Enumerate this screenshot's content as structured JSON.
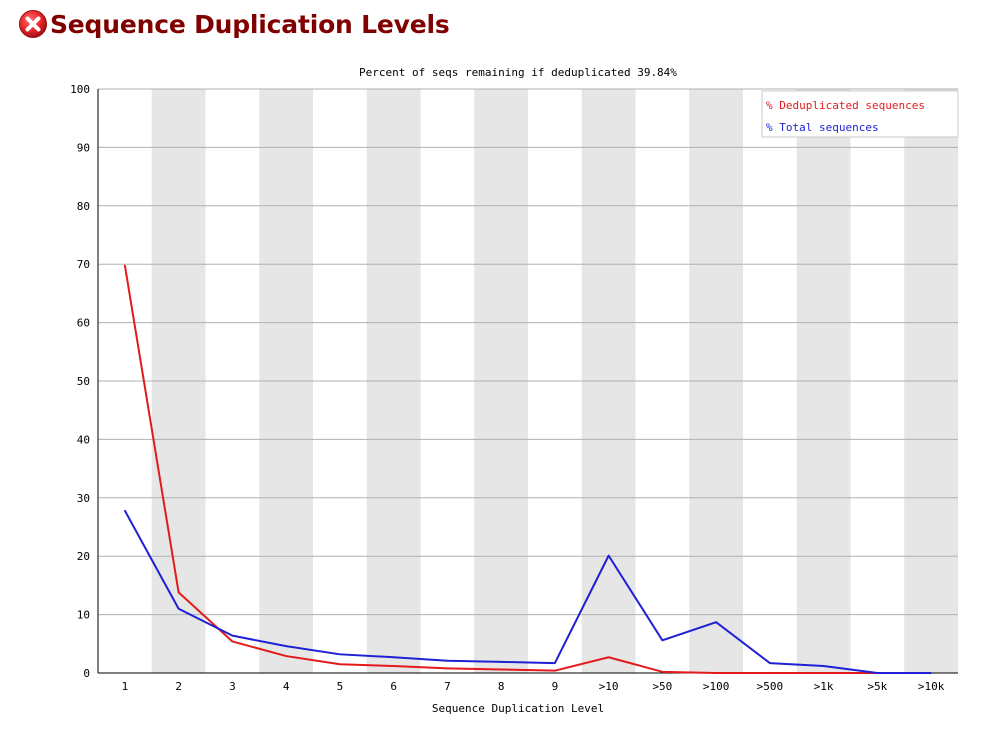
{
  "page": {
    "title": "Sequence Duplication Levels",
    "status": "fail",
    "status_icon": "error-x-icon",
    "status_color": "#e8272b"
  },
  "chart_data": {
    "type": "line",
    "title": "Percent of seqs remaining if deduplicated 39.84%",
    "xlabel": "Sequence Duplication Level",
    "ylabel": "",
    "ylim": [
      0,
      100
    ],
    "yticks": [
      0,
      10,
      20,
      30,
      40,
      50,
      60,
      70,
      80,
      90,
      100
    ],
    "categories": [
      "1",
      "2",
      "3",
      "4",
      "5",
      "6",
      "7",
      "8",
      "9",
      ">10",
      ">50",
      ">100",
      ">500",
      ">1k",
      ">5k",
      ">10k"
    ],
    "grid": true,
    "legend": "top-right",
    "series": [
      {
        "name": "% Deduplicated sequences",
        "color": "#e31a1c",
        "values": [
          69.8,
          13.8,
          5.4,
          2.9,
          1.5,
          1.2,
          0.8,
          0.6,
          0.4,
          2.7,
          0.2,
          0.0,
          0.0,
          0.0,
          0.0,
          0.0
        ]
      },
      {
        "name": "% Total sequences",
        "color": "#1f1fd6",
        "values": [
          27.8,
          11.0,
          6.4,
          4.6,
          3.2,
          2.7,
          2.1,
          1.9,
          1.7,
          20.1,
          5.6,
          8.7,
          1.7,
          1.2,
          0.0,
          0.0
        ]
      }
    ]
  }
}
